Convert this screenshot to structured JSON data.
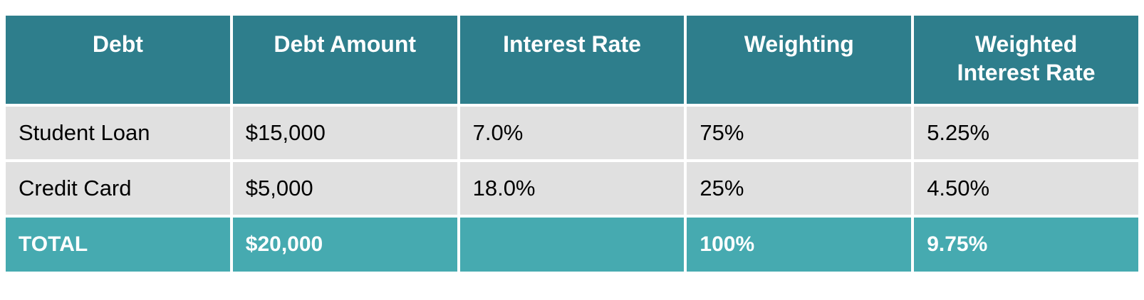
{
  "table": {
    "columns": [
      {
        "label": "Debt"
      },
      {
        "label": "Debt Amount"
      },
      {
        "label": "Interest Rate"
      },
      {
        "label": "Weighting"
      },
      {
        "label": "Weighted Interest Rate"
      }
    ],
    "rows": [
      [
        "Student Loan",
        "$15,000",
        "7.0%",
        "75%",
        "5.25%"
      ],
      [
        "Credit Card",
        "$5,000",
        "18.0%",
        "25%",
        "4.50%"
      ]
    ],
    "total_row": [
      "TOTAL",
      "$20,000",
      "",
      "100%",
      "9.75%"
    ],
    "colors": {
      "header_bg": "#2E7E8C",
      "data_row_bg": "#E0E0E0",
      "total_row_bg": "#46AAB0",
      "gridline": "#FFFFFF",
      "header_text": "#FFFFFF",
      "body_text": "#000000",
      "total_text": "#FFFFFF"
    }
  },
  "chart_data": {
    "type": "table",
    "title": "",
    "columns": [
      "Debt",
      "Debt Amount",
      "Interest Rate",
      "Weighting",
      "Weighted Interest Rate"
    ],
    "rows": [
      {
        "debt": "Student Loan",
        "debt_amount": 15000,
        "interest_rate_pct": 7.0,
        "weighting_pct": 75,
        "weighted_interest_rate_pct": 5.25
      },
      {
        "debt": "Credit Card",
        "debt_amount": 5000,
        "interest_rate_pct": 18.0,
        "weighting_pct": 25,
        "weighted_interest_rate_pct": 4.5
      }
    ],
    "total": {
      "debt": "TOTAL",
      "debt_amount": 20000,
      "interest_rate_pct": null,
      "weighting_pct": 100,
      "weighted_interest_rate_pct": 9.75
    },
    "layout_hints": {
      "header_style": "teal-bold-centered",
      "total_style": "light-teal-bold",
      "gridlines": "white"
    }
  }
}
